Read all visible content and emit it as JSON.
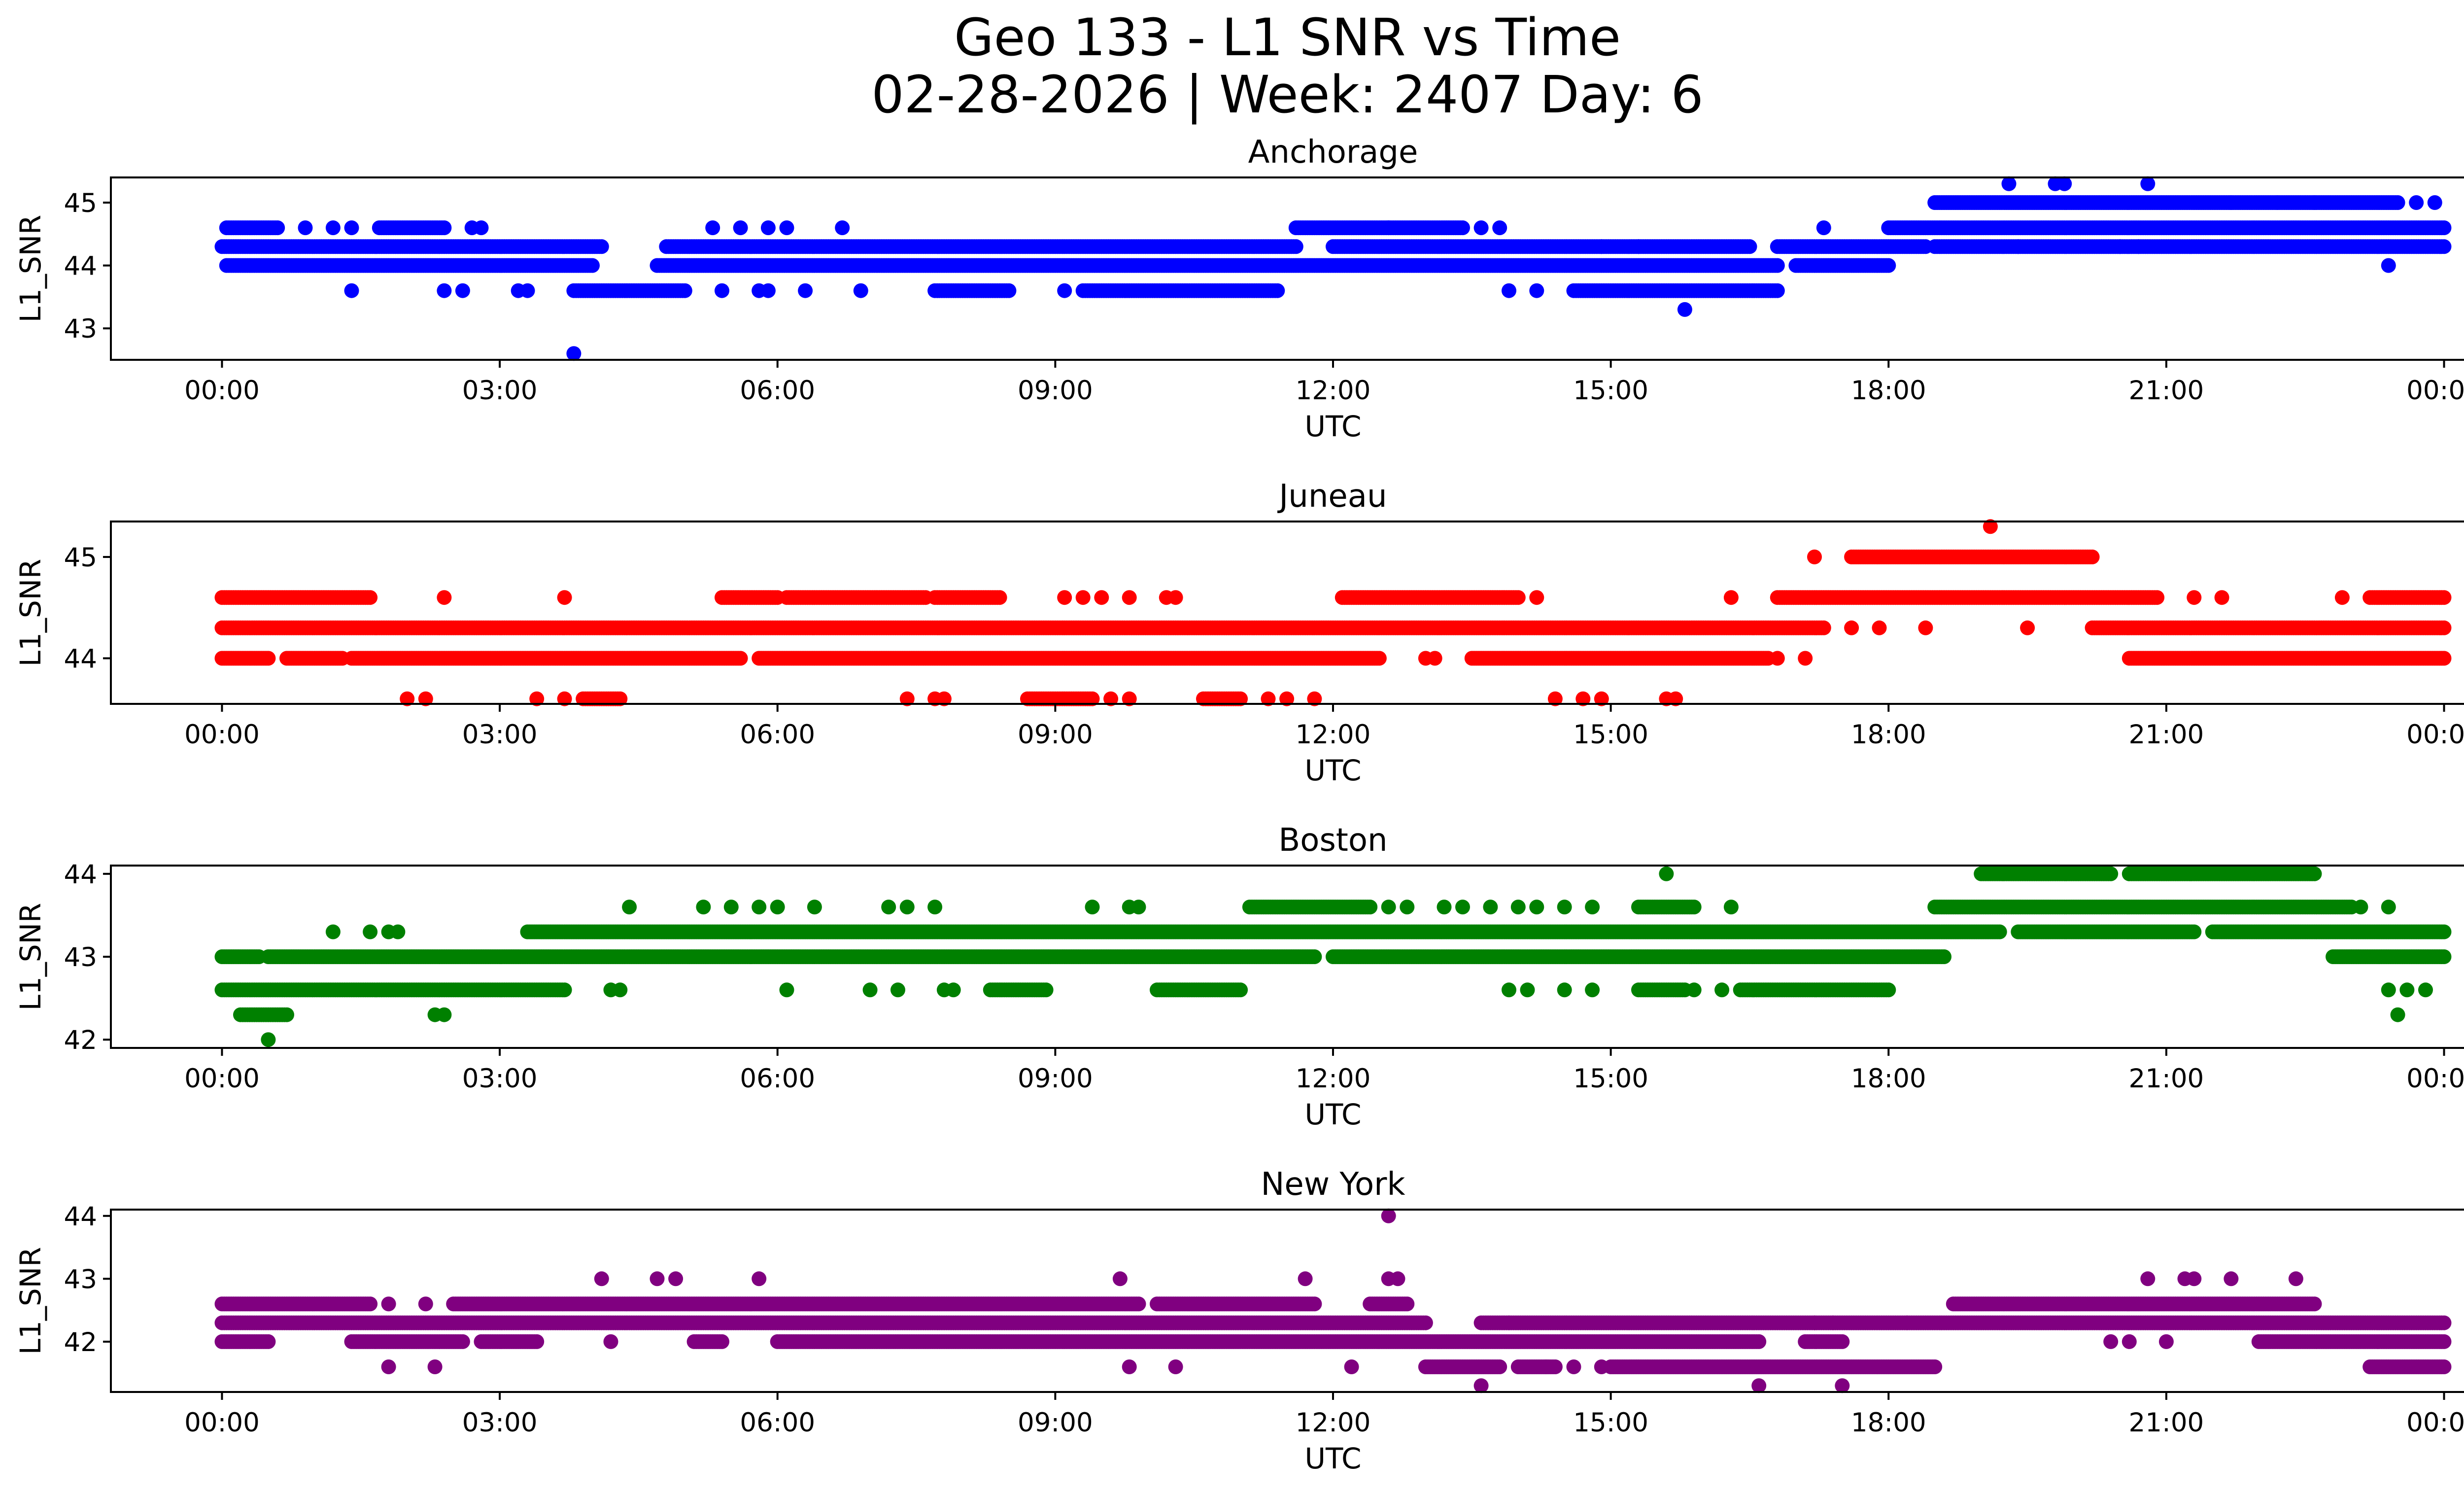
{
  "figure": {
    "title_line1": "Geo 133 - L1 SNR vs Time",
    "title_line2": "02-28-2026 | Week: 2407 Day: 6"
  },
  "chart_data": [
    {
      "type": "scatter",
      "title": "Anchorage",
      "xlabel": "UTC",
      "ylabel": "L1_SNR",
      "color": "#0000ff",
      "xlim": [
        -1.2,
        25.2
      ],
      "ylim": [
        42.5,
        45.4
      ],
      "xticks": [
        0,
        3,
        6,
        9,
        12,
        15,
        18,
        21,
        24
      ],
      "xtick_labels": [
        "00:00",
        "03:00",
        "06:00",
        "09:00",
        "12:00",
        "15:00",
        "18:00",
        "21:00",
        "00:00"
      ],
      "yticks": [
        43,
        44,
        45
      ],
      "ytick_labels": [
        "43",
        "44",
        "45"
      ],
      "bands": [
        {
          "y": 44.3,
          "segments": [
            [
              0,
              4.1
            ],
            [
              4.8,
              11.6
            ],
            [
              12.0,
              16.5
            ],
            [
              16.8,
              18.4
            ],
            [
              18.5,
              24
            ]
          ]
        },
        {
          "y": 44.0,
          "segments": [
            [
              0.05,
              4.0
            ],
            [
              4.7,
              16.8
            ],
            [
              17.0,
              18.0
            ]
          ]
        },
        {
          "y": 44.6,
          "segments": [
            [
              0.05,
              0.6
            ],
            [
              1.7,
              2.4
            ],
            [
              11.6,
              12.6
            ],
            [
              12.6,
              13.4
            ],
            [
              18.0,
              24
            ]
          ]
        },
        {
          "y": 45.0,
          "segments": [
            [
              18.5,
              23.5
            ]
          ]
        },
        {
          "y": 43.6,
          "segments": [
            [
              3.8,
              5.0
            ],
            [
              7.7,
              8.5
            ],
            [
              9.3,
              11.4
            ],
            [
              14.6,
              16.8
            ]
          ]
        }
      ],
      "points": [
        {
          "x": 3.8,
          "y": 42.6
        },
        {
          "x": 15.8,
          "y": 43.3
        },
        {
          "x": 19.3,
          "y": 45.3
        },
        {
          "x": 19.8,
          "y": 45.3
        },
        {
          "x": 19.9,
          "y": 45.3
        },
        {
          "x": 20.8,
          "y": 45.3
        },
        {
          "x": 23.4,
          "y": 44.0
        },
        {
          "x": 0.9,
          "y": 44.6
        },
        {
          "x": 1.2,
          "y": 44.6
        },
        {
          "x": 1.4,
          "y": 44.6
        },
        {
          "x": 2.7,
          "y": 44.6
        },
        {
          "x": 2.8,
          "y": 44.6
        },
        {
          "x": 5.3,
          "y": 44.6
        },
        {
          "x": 5.6,
          "y": 44.6
        },
        {
          "x": 5.9,
          "y": 44.6
        },
        {
          "x": 6.1,
          "y": 44.6
        },
        {
          "x": 6.7,
          "y": 44.6
        },
        {
          "x": 17.3,
          "y": 44.6
        },
        {
          "x": 13.6,
          "y": 44.6
        },
        {
          "x": 13.8,
          "y": 44.6
        },
        {
          "x": 1.4,
          "y": 43.6
        },
        {
          "x": 2.4,
          "y": 43.6
        },
        {
          "x": 2.6,
          "y": 43.6
        },
        {
          "x": 3.2,
          "y": 43.6
        },
        {
          "x": 3.3,
          "y": 43.6
        },
        {
          "x": 5.4,
          "y": 43.6
        },
        {
          "x": 5.8,
          "y": 43.6
        },
        {
          "x": 5.9,
          "y": 43.6
        },
        {
          "x": 6.3,
          "y": 43.6
        },
        {
          "x": 6.9,
          "y": 43.6
        },
        {
          "x": 9.1,
          "y": 43.6
        },
        {
          "x": 13.9,
          "y": 43.6
        },
        {
          "x": 14.2,
          "y": 43.6
        },
        {
          "x": 19.4,
          "y": 44.3
        },
        {
          "x": 20.5,
          "y": 44.3
        },
        {
          "x": 20.7,
          "y": 44.3
        },
        {
          "x": 22.2,
          "y": 45.0
        },
        {
          "x": 22.6,
          "y": 45.0
        },
        {
          "x": 21.7,
          "y": 45.0
        },
        {
          "x": 23.7,
          "y": 45.0
        },
        {
          "x": 23.9,
          "y": 45.0
        },
        {
          "x": 14.9,
          "y": 44.3
        },
        {
          "x": 15.3,
          "y": 44.3
        }
      ]
    },
    {
      "type": "scatter",
      "title": "Juneau",
      "xlabel": "UTC",
      "ylabel": "L1_SNR",
      "color": "#ff0000",
      "xlim": [
        -1.2,
        25.2
      ],
      "ylim": [
        43.55,
        45.35
      ],
      "xticks": [
        0,
        3,
        6,
        9,
        12,
        15,
        18,
        21,
        24
      ],
      "xtick_labels": [
        "00:00",
        "03:00",
        "06:00",
        "09:00",
        "12:00",
        "15:00",
        "18:00",
        "21:00",
        "00:00"
      ],
      "yticks": [
        44,
        45
      ],
      "ytick_labels": [
        "44",
        "45"
      ],
      "bands": [
        {
          "y": 44.3,
          "segments": [
            [
              0,
              17.3
            ],
            [
              20.2,
              24
            ]
          ]
        },
        {
          "y": 44.0,
          "segments": [
            [
              0,
              0.5
            ],
            [
              0.7,
              1.3
            ],
            [
              1.4,
              5.6
            ],
            [
              5.8,
              12.5
            ],
            [
              13.5,
              16.7
            ],
            [
              20.6,
              24
            ]
          ]
        },
        {
          "y": 44.6,
          "segments": [
            [
              0,
              1.6
            ],
            [
              5.4,
              6.0
            ],
            [
              6.1,
              7.6
            ],
            [
              7.7,
              8.4
            ],
            [
              12.1,
              14.0
            ],
            [
              16.8,
              20.9
            ],
            [
              23.2,
              24
            ]
          ]
        },
        {
          "y": 45.0,
          "segments": [
            [
              17.6,
              20.2
            ]
          ]
        },
        {
          "y": 43.6,
          "segments": [
            [
              3.9,
              4.3
            ],
            [
              8.7,
              9.4
            ],
            [
              10.6,
              11.0
            ]
          ]
        }
      ],
      "points": [
        {
          "x": 19.1,
          "y": 45.3
        },
        {
          "x": 17.2,
          "y": 45.0
        },
        {
          "x": 2.4,
          "y": 44.6
        },
        {
          "x": 3.7,
          "y": 44.6
        },
        {
          "x": 9.1,
          "y": 44.6
        },
        {
          "x": 9.3,
          "y": 44.6
        },
        {
          "x": 9.5,
          "y": 44.6
        },
        {
          "x": 9.8,
          "y": 44.6
        },
        {
          "x": 10.2,
          "y": 44.6
        },
        {
          "x": 10.3,
          "y": 44.6
        },
        {
          "x": 16.3,
          "y": 44.6
        },
        {
          "x": 14.2,
          "y": 44.6
        },
        {
          "x": 21.3,
          "y": 44.6
        },
        {
          "x": 21.6,
          "y": 44.6
        },
        {
          "x": 22.9,
          "y": 44.6
        },
        {
          "x": 17.6,
          "y": 44.3
        },
        {
          "x": 17.9,
          "y": 44.3
        },
        {
          "x": 18.4,
          "y": 44.3
        },
        {
          "x": 19.5,
          "y": 44.3
        },
        {
          "x": 13.0,
          "y": 44.0
        },
        {
          "x": 13.1,
          "y": 44.0
        },
        {
          "x": 16.8,
          "y": 44.0
        },
        {
          "x": 17.1,
          "y": 44.0
        },
        {
          "x": 2.0,
          "y": 43.6
        },
        {
          "x": 2.2,
          "y": 43.6
        },
        {
          "x": 3.4,
          "y": 43.6
        },
        {
          "x": 3.7,
          "y": 43.6
        },
        {
          "x": 7.4,
          "y": 43.6
        },
        {
          "x": 7.7,
          "y": 43.6
        },
        {
          "x": 7.8,
          "y": 43.6
        },
        {
          "x": 9.6,
          "y": 43.6
        },
        {
          "x": 9.8,
          "y": 43.6
        },
        {
          "x": 11.3,
          "y": 43.6
        },
        {
          "x": 11.5,
          "y": 43.6
        },
        {
          "x": 11.8,
          "y": 43.6
        },
        {
          "x": 14.4,
          "y": 43.6
        },
        {
          "x": 14.7,
          "y": 43.6
        },
        {
          "x": 14.9,
          "y": 43.6
        },
        {
          "x": 15.6,
          "y": 43.6
        },
        {
          "x": 15.7,
          "y": 43.6
        }
      ]
    },
    {
      "type": "scatter",
      "title": "Boston",
      "xlabel": "UTC",
      "ylabel": "L1_SNR",
      "color": "#008000",
      "xlim": [
        -1.2,
        25.2
      ],
      "ylim": [
        41.9,
        44.1
      ],
      "xticks": [
        0,
        3,
        6,
        9,
        12,
        15,
        18,
        21,
        24
      ],
      "xtick_labels": [
        "00:00",
        "03:00",
        "06:00",
        "09:00",
        "12:00",
        "15:00",
        "18:00",
        "21:00",
        "00:00"
      ],
      "yticks": [
        42,
        43,
        44
      ],
      "ytick_labels": [
        "42",
        "43",
        "44"
      ],
      "bands": [
        {
          "y": 43.0,
          "segments": [
            [
              0,
              0.4
            ],
            [
              0.5,
              11.8
            ],
            [
              12.0,
              18.6
            ],
            [
              22.8,
              24
            ]
          ]
        },
        {
          "y": 42.6,
          "segments": [
            [
              0,
              3.7
            ],
            [
              16.4,
              18.0
            ],
            [
              15.3,
              15.8
            ],
            [
              10.1,
              11.0
            ],
            [
              8.3,
              8.9
            ]
          ]
        },
        {
          "y": 43.3,
          "segments": [
            [
              3.3,
              19.2
            ],
            [
              19.4,
              21.3
            ],
            [
              21.5,
              24
            ]
          ]
        },
        {
          "y": 43.6,
          "segments": [
            [
              11.1,
              12.4
            ],
            [
              15.3,
              15.9
            ],
            [
              18.5,
              23.0
            ]
          ]
        },
        {
          "y": 44.0,
          "segments": [
            [
              19.0,
              20.4
            ],
            [
              20.6,
              22.6
            ]
          ]
        },
        {
          "y": 42.3,
          "segments": [
            [
              0.2,
              0.7
            ]
          ]
        }
      ],
      "points": [
        {
          "x": 0.5,
          "y": 42.0
        },
        {
          "x": 15.6,
          "y": 44.0
        },
        {
          "x": 1.2,
          "y": 43.3
        },
        {
          "x": 1.6,
          "y": 43.3
        },
        {
          "x": 1.8,
          "y": 43.3
        },
        {
          "x": 1.9,
          "y": 43.3
        },
        {
          "x": 2.3,
          "y": 42.3
        },
        {
          "x": 2.4,
          "y": 42.3
        },
        {
          "x": 4.4,
          "y": 43.6
        },
        {
          "x": 5.2,
          "y": 43.6
        },
        {
          "x": 5.5,
          "y": 43.6
        },
        {
          "x": 5.8,
          "y": 43.6
        },
        {
          "x": 6.0,
          "y": 43.6
        },
        {
          "x": 6.4,
          "y": 43.6
        },
        {
          "x": 7.2,
          "y": 43.6
        },
        {
          "x": 7.4,
          "y": 43.6
        },
        {
          "x": 7.7,
          "y": 43.6
        },
        {
          "x": 9.4,
          "y": 43.6
        },
        {
          "x": 9.8,
          "y": 43.6
        },
        {
          "x": 9.9,
          "y": 43.6
        },
        {
          "x": 12.6,
          "y": 43.6
        },
        {
          "x": 12.8,
          "y": 43.6
        },
        {
          "x": 13.2,
          "y": 43.6
        },
        {
          "x": 13.4,
          "y": 43.6
        },
        {
          "x": 13.7,
          "y": 43.6
        },
        {
          "x": 14.0,
          "y": 43.6
        },
        {
          "x": 14.2,
          "y": 43.6
        },
        {
          "x": 14.5,
          "y": 43.6
        },
        {
          "x": 14.8,
          "y": 43.6
        },
        {
          "x": 16.3,
          "y": 43.6
        },
        {
          "x": 4.2,
          "y": 42.6
        },
        {
          "x": 4.3,
          "y": 42.6
        },
        {
          "x": 6.1,
          "y": 42.6
        },
        {
          "x": 7.0,
          "y": 42.6
        },
        {
          "x": 7.3,
          "y": 42.6
        },
        {
          "x": 7.8,
          "y": 42.6
        },
        {
          "x": 7.9,
          "y": 42.6
        },
        {
          "x": 13.9,
          "y": 42.6
        },
        {
          "x": 14.1,
          "y": 42.6
        },
        {
          "x": 14.5,
          "y": 42.6
        },
        {
          "x": 14.8,
          "y": 42.6
        },
        {
          "x": 15.9,
          "y": 42.6
        },
        {
          "x": 16.2,
          "y": 42.6
        },
        {
          "x": 23.4,
          "y": 42.6
        },
        {
          "x": 23.6,
          "y": 42.6
        },
        {
          "x": 23.8,
          "y": 42.6
        },
        {
          "x": 23.5,
          "y": 42.3
        },
        {
          "x": 23.1,
          "y": 43.6
        },
        {
          "x": 23.4,
          "y": 43.6
        }
      ]
    },
    {
      "type": "scatter",
      "title": "New York",
      "xlabel": "UTC",
      "ylabel": "L1_SNR",
      "color": "#800080",
      "xlim": [
        -1.2,
        25.2
      ],
      "ylim": [
        41.2,
        44.1
      ],
      "xticks": [
        0,
        3,
        6,
        9,
        12,
        15,
        18,
        21,
        24
      ],
      "xtick_labels": [
        "00:00",
        "03:00",
        "06:00",
        "09:00",
        "12:00",
        "15:00",
        "18:00",
        "21:00",
        "00:00"
      ],
      "yticks": [
        42,
        43,
        44
      ],
      "ytick_labels": [
        "42",
        "43",
        "44"
      ],
      "bands": [
        {
          "y": 42.3,
          "segments": [
            [
              0,
              13.0
            ],
            [
              13.6,
              24
            ]
          ]
        },
        {
          "y": 42.0,
          "segments": [
            [
              0,
              0.5
            ],
            [
              1.4,
              2.6
            ],
            [
              2.8,
              3.4
            ],
            [
              5.1,
              5.4
            ],
            [
              6.0,
              16.6
            ],
            [
              17.1,
              17.5
            ],
            [
              22.0,
              24
            ]
          ]
        },
        {
          "y": 42.6,
          "segments": [
            [
              0,
              1.6
            ],
            [
              2.5,
              9.9
            ],
            [
              10.1,
              11.8
            ],
            [
              12.4,
              12.8
            ],
            [
              18.7,
              22.6
            ]
          ]
        },
        {
          "y": 41.6,
          "segments": [
            [
              13.0,
              13.8
            ],
            [
              14.0,
              14.4
            ],
            [
              15.0,
              18.5
            ],
            [
              23.2,
              24
            ]
          ]
        }
      ],
      "points": [
        {
          "x": 12.6,
          "y": 44.0
        },
        {
          "x": 4.1,
          "y": 43.0
        },
        {
          "x": 4.7,
          "y": 43.0
        },
        {
          "x": 4.9,
          "y": 43.0
        },
        {
          "x": 5.8,
          "y": 43.0
        },
        {
          "x": 9.7,
          "y": 43.0
        },
        {
          "x": 11.7,
          "y": 43.0
        },
        {
          "x": 12.6,
          "y": 43.0
        },
        {
          "x": 12.7,
          "y": 43.0
        },
        {
          "x": 20.8,
          "y": 43.0
        },
        {
          "x": 21.2,
          "y": 43.0
        },
        {
          "x": 21.3,
          "y": 43.0
        },
        {
          "x": 21.7,
          "y": 43.0
        },
        {
          "x": 22.4,
          "y": 43.0
        },
        {
          "x": 13.6,
          "y": 41.3
        },
        {
          "x": 16.6,
          "y": 41.3
        },
        {
          "x": 17.5,
          "y": 41.3
        },
        {
          "x": 1.8,
          "y": 41.6
        },
        {
          "x": 2.3,
          "y": 41.6
        },
        {
          "x": 9.8,
          "y": 41.6
        },
        {
          "x": 10.3,
          "y": 41.6
        },
        {
          "x": 12.2,
          "y": 41.6
        },
        {
          "x": 13.9,
          "y": 42.3
        },
        {
          "x": 14.3,
          "y": 41.6
        },
        {
          "x": 14.6,
          "y": 41.6
        },
        {
          "x": 14.9,
          "y": 41.6
        },
        {
          "x": 17.2,
          "y": 42.3
        },
        {
          "x": 17.4,
          "y": 42.3
        },
        {
          "x": 18.2,
          "y": 42.3
        },
        {
          "x": 1.8,
          "y": 42.6
        },
        {
          "x": 2.2,
          "y": 42.6
        },
        {
          "x": 4.2,
          "y": 42.0
        },
        {
          "x": 20.4,
          "y": 42.0
        },
        {
          "x": 20.6,
          "y": 42.0
        },
        {
          "x": 21.0,
          "y": 42.0
        }
      ]
    }
  ]
}
